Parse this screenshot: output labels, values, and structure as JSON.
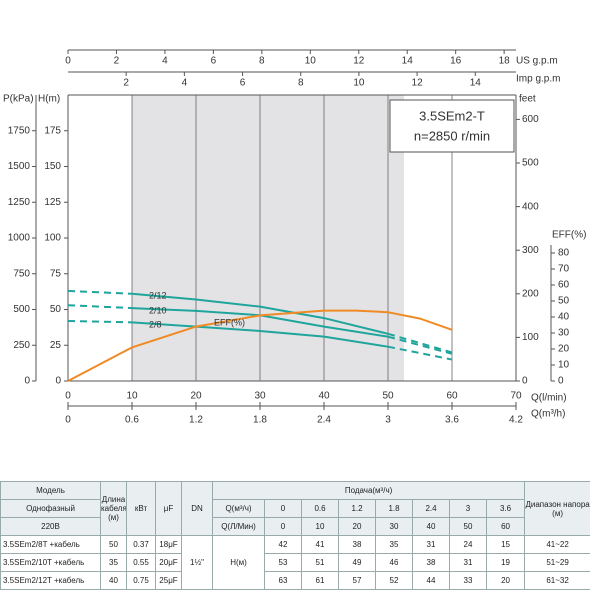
{
  "chart_data": {
    "type": "line",
    "info_title": "3.5SEm2-T",
    "info_speed": "n=2850 r/min",
    "xlabel": "Q(l/min)",
    "x": [
      0,
      10,
      20,
      30,
      40,
      50,
      60
    ],
    "xlim": [
      0,
      70
    ],
    "xticks": [
      0,
      10,
      20,
      30,
      40,
      50,
      60,
      70
    ],
    "x2label": "Q(m³/h)",
    "x2lim": [
      0,
      4.2
    ],
    "x2ticks": [
      0,
      0.6,
      1.2,
      1.8,
      2.4,
      3,
      3.6,
      4.2
    ],
    "us_label": "US g.p.m",
    "us_lim": [
      0,
      18.49
    ],
    "us_ticks": [
      0,
      2,
      4,
      6,
      8,
      10,
      12,
      14,
      16,
      18
    ],
    "imp_label": "Imp g.p.m",
    "imp_lim": [
      0,
      15.4
    ],
    "imp_ticks": [
      2,
      4,
      6,
      8,
      10,
      12,
      14
    ],
    "ylabel": "H(m)",
    "ylim": [
      0,
      200
    ],
    "yticks": [
      0,
      25,
      50,
      75,
      100,
      125,
      150,
      175
    ],
    "p_label": "P(kPa)",
    "p_lim": [
      0,
      2000
    ],
    "p_ticks": [
      0,
      250,
      500,
      750,
      1000,
      1250,
      1500,
      1750
    ],
    "feet_label": "feet",
    "feet_lim": [
      0,
      656
    ],
    "feet_ticks": [
      0,
      100,
      200,
      300,
      400,
      500,
      600
    ],
    "y2label": "EFF(%)",
    "y2lim": [
      0,
      85
    ],
    "y2ticks": [
      0,
      10,
      20,
      30,
      40,
      50,
      60,
      70,
      80
    ],
    "grid": true,
    "shaded_range": [
      10,
      52.5
    ],
    "solid_range": [
      10,
      50
    ],
    "series": [
      {
        "name": "2/12",
        "color": "#1fa59b",
        "values": [
          63,
          61,
          57,
          52,
          44,
          33,
          20
        ]
      },
      {
        "name": "2/10",
        "color": "#1fa59b",
        "values": [
          53,
          51,
          49,
          46,
          38,
          31,
          19
        ]
      },
      {
        "name": "2/8",
        "color": "#1fa59b",
        "values": [
          42,
          41,
          38,
          35,
          31,
          24,
          15
        ]
      },
      {
        "name": "EFF(%)",
        "color": "#f08a24",
        "axis": "y2",
        "x": [
          0,
          10,
          20,
          30,
          40,
          45,
          50,
          55,
          60
        ],
        "values": [
          0,
          21,
          34,
          41,
          44,
          44,
          43,
          39,
          32
        ]
      }
    ]
  },
  "table": {
    "model": "Модель",
    "phase": "Однофазный",
    "voltage": "220В",
    "cable": "Длина кабеля (м)",
    "kw": "кВт",
    "uf": "μF",
    "dn": "DN",
    "flow": "Подача(м³/ч)",
    "q_m3h_label": "Q(м³/ч)",
    "q_lmin_label": "Q(Л/Мин)",
    "q_m3h": [
      0,
      0.6,
      1.2,
      1.8,
      2.4,
      3,
      3.6
    ],
    "q_lmin": [
      0,
      10,
      20,
      30,
      40,
      50,
      60
    ],
    "range": "Диапазон напора (м)",
    "dn_value": "1½\"",
    "h_label": "H(м)",
    "rows": [
      {
        "model": "3.5SEm2/8T +кабель",
        "cable": 50,
        "kw": 0.37,
        "uf": "18μF",
        "heads": [
          42,
          41,
          38,
          35,
          31,
          24,
          15
        ],
        "range": "41~22"
      },
      {
        "model": "3.5SEm2/10T +кабель",
        "cable": 35,
        "kw": 0.55,
        "uf": "20μF",
        "heads": [
          53,
          51,
          49,
          46,
          38,
          31,
          19
        ],
        "range": "51~29"
      },
      {
        "model": "3.5SEm2/12T +кабель",
        "cable": 40,
        "kw": 0.75,
        "uf": "25μF",
        "heads": [
          63,
          61,
          57,
          52,
          44,
          33,
          20
        ],
        "range": "61~32"
      }
    ]
  }
}
